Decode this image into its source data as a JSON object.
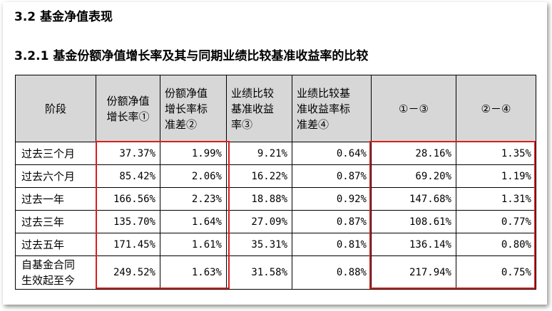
{
  "section_title": "3.2 基金净值表现",
  "subsection_title": "3.2.1 基金份额净值增长率及其与同期业绩比较基准收益率的比较",
  "table": {
    "headers": [
      [
        "阶段"
      ],
      [
        "份额净值",
        "增长率①"
      ],
      [
        "份额净值",
        "增长率标",
        "准差②"
      ],
      [
        "业绩比较",
        "基准收益",
        "率③"
      ],
      [
        "业绩比较基",
        "准收益率标",
        "准差④"
      ],
      [
        "①－③"
      ],
      [
        "②－④"
      ]
    ],
    "rows": [
      {
        "stage": [
          "过去三个月"
        ],
        "c1": "37.37%",
        "c2": "1.99%",
        "c3": "9.21%",
        "c4": "0.64%",
        "c5": "28.16%",
        "c6": "1.35%"
      },
      {
        "stage": [
          "过去六个月"
        ],
        "c1": "85.42%",
        "c2": "2.06%",
        "c3": "16.22%",
        "c4": "0.87%",
        "c5": "69.20%",
        "c6": "1.19%"
      },
      {
        "stage": [
          "过去一年"
        ],
        "c1": "166.56%",
        "c2": "2.23%",
        "c3": "18.88%",
        "c4": "0.92%",
        "c5": "147.68%",
        "c6": "1.31%"
      },
      {
        "stage": [
          "过去三年"
        ],
        "c1": "135.70%",
        "c2": "1.64%",
        "c3": "27.09%",
        "c4": "0.87%",
        "c5": "108.61%",
        "c6": "0.77%"
      },
      {
        "stage": [
          "过去五年"
        ],
        "c1": "171.45%",
        "c2": "1.61%",
        "c3": "35.31%",
        "c4": "0.81%",
        "c5": "136.14%",
        "c6": "0.80%"
      },
      {
        "stage": [
          "自基金合同",
          "生效起至今"
        ],
        "c1": "249.52%",
        "c2": "1.63%",
        "c3": "31.58%",
        "c4": "0.88%",
        "c5": "217.94%",
        "c6": "0.75%"
      }
    ]
  },
  "highlight_color": "#d81e1e"
}
